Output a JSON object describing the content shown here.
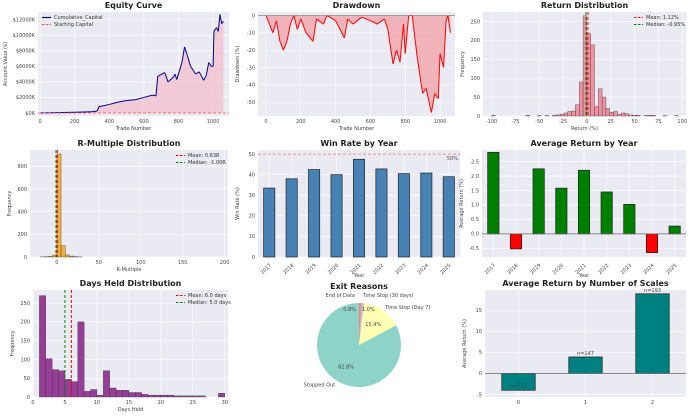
{
  "chart_data": [
    {
      "type": "area",
      "title": "Equity Curve",
      "xlabel": "Trade Number",
      "ylabel": "Account Value ($)",
      "xlim": [
        -12,
        1092
      ],
      "ylim": [
        -390,
        13000
      ],
      "grid": true,
      "xticks": [
        0,
        200,
        400,
        600,
        800,
        1000
      ],
      "xticklabels": [
        "0",
        "200",
        "400",
        "600",
        "800",
        "1000"
      ],
      "yticks": [
        0,
        2000,
        4000,
        6000,
        8000,
        10000,
        12000
      ],
      "yticklabels": [
        "$0K",
        "$2000K",
        "$4000K",
        "$6000K",
        "$8000K",
        "$10000K",
        "$12000K"
      ],
      "legend": {
        "placement": "top-left",
        "entries": [
          "Cumulative_Capital",
          "Starting Capital"
        ]
      },
      "colors": {
        "line": "#00008b",
        "fill": "#f4c2cf",
        "reference": "#ff4444"
      },
      "starting_capital": 0,
      "x": [
        0,
        100,
        200,
        300,
        330,
        340,
        400,
        450,
        500,
        550,
        600,
        650,
        670,
        680,
        720,
        740,
        770,
        780,
        790,
        820,
        835,
        850,
        870,
        900,
        920,
        945,
        960,
        975,
        990,
        1000,
        1005,
        1020,
        1030,
        1040,
        1050,
        1060
      ],
      "y": [
        0,
        50,
        100,
        150,
        250,
        800,
        1100,
        1400,
        1600,
        1700,
        2000,
        2300,
        2200,
        4700,
        5200,
        4000,
        4600,
        5000,
        4300,
        6500,
        8500,
        7500,
        6000,
        5000,
        5300,
        4200,
        4800,
        6500,
        6000,
        6000,
        10500,
        11000,
        10500,
        12700,
        11500,
        11800
      ]
    },
    {
      "type": "area",
      "title": "Drawdown",
      "xlabel": "Trade Number",
      "ylabel": "Drawdown (%)",
      "xlim": [
        -46,
        1086
      ],
      "ylim": [
        -58,
        2
      ],
      "grid": true,
      "xticks": [
        0,
        200,
        400,
        600,
        800,
        1000
      ],
      "xticklabels": [
        "0",
        "200",
        "400",
        "600",
        "800",
        "1000"
      ],
      "yticks": [
        -50,
        -40,
        -30,
        -20,
        -10,
        0
      ],
      "yticklabels": [
        "-50",
        "-40",
        "-30",
        "-20",
        "-10",
        "0"
      ],
      "colors": {
        "line": "#ff0000",
        "fill": "#f2a5ab"
      },
      "x": [
        0,
        20,
        40,
        60,
        80,
        100,
        120,
        140,
        160,
        180,
        200,
        230,
        270,
        290,
        330,
        350,
        400,
        450,
        470,
        500,
        550,
        600,
        640,
        680,
        700,
        730,
        750,
        770,
        790,
        800,
        820,
        840,
        870,
        900,
        920,
        950,
        970,
        990,
        1000,
        1020,
        1035,
        1045,
        1060
      ],
      "y": [
        0,
        -5,
        -10,
        -3,
        -15,
        -20,
        -15,
        -5,
        0,
        -8,
        -2,
        -10,
        -15,
        -2,
        -5,
        0,
        -3,
        -13,
        -2,
        -5,
        -1,
        -3,
        -5,
        -2,
        -8,
        -28,
        -20,
        -27,
        -5,
        -22,
        0,
        0,
        -25,
        -45,
        -42,
        -56,
        -45,
        -48,
        -22,
        -30,
        -3,
        0,
        -10
      ]
    },
    {
      "type": "bar",
      "title": "Return Distribution",
      "xlabel": "Return (%)",
      "ylabel": "Frequency",
      "xlim": [
        -109,
        104
      ],
      "ylim": [
        0,
        275
      ],
      "grid": true,
      "bin_width": 4,
      "xticks": [
        -100,
        -75,
        -50,
        -25,
        0,
        25,
        50,
        75,
        100
      ],
      "xticklabels": [
        "-100",
        "-75",
        "-50",
        "-25",
        "0",
        "25",
        "50",
        "75",
        "100"
      ],
      "yticks": [
        0,
        50,
        100,
        150,
        200,
        250
      ],
      "yticklabels": [
        "0",
        "50",
        "100",
        "150",
        "200",
        "250"
      ],
      "colors": {
        "bar": "#f08a9b",
        "mean": "#ff0000",
        "median": "#008000"
      },
      "legend": {
        "placement": "top-right",
        "entries": [
          "Mean: 1.12%",
          "Median: -0.95%"
        ]
      },
      "mean": 1.12,
      "median": -0.95,
      "bin_starts": [
        -100,
        -64,
        -52,
        -44,
        -36,
        -32,
        -28,
        -24,
        -20,
        -16,
        -12,
        -8,
        -4,
        0,
        4,
        8,
        12,
        16,
        20,
        24,
        28,
        32,
        36,
        40,
        44,
        48,
        52,
        60,
        64,
        68,
        80,
        92
      ],
      "counts": [
        2,
        2,
        1,
        1,
        2,
        3,
        5,
        8,
        12,
        13,
        30,
        90,
        265,
        218,
        188,
        25,
        72,
        50,
        20,
        10,
        12,
        5,
        8,
        6,
        3,
        2,
        2,
        1,
        2,
        2,
        1,
        1
      ]
    },
    {
      "type": "bar",
      "title": "R-Multiple Distribution",
      "xlabel": "R-Multiple",
      "ylabel": "Frequency",
      "xlim": [
        -32,
        204
      ],
      "ylim": [
        0,
        945
      ],
      "grid": true,
      "bin_width": 5,
      "xticks": [
        0,
        50,
        100,
        150,
        200
      ],
      "xticklabels": [
        "0",
        "50",
        "100",
        "150",
        "200"
      ],
      "yticks": [
        0,
        200,
        400,
        600,
        800
      ],
      "yticklabels": [
        "0",
        "200",
        "400",
        "600",
        "800"
      ],
      "colors": {
        "bar": "#f5a623",
        "mean": "#ff0000",
        "median": "#008000"
      },
      "legend": {
        "placement": "top-right",
        "entries": [
          "Mean: 0.63R",
          "Median: -1.00R"
        ]
      },
      "mean": 0.63,
      "median": -1.0,
      "bin_starts": [
        -20,
        -15,
        -10,
        -5,
        0,
        5,
        10,
        15,
        20,
        25
      ],
      "counts": [
        1,
        2,
        5,
        18,
        910,
        100,
        18,
        8,
        3,
        1
      ]
    },
    {
      "type": "bar",
      "title": "Win Rate by Year",
      "xlabel": "Year",
      "ylabel": "Win Rate (%)",
      "ylim": [
        0,
        52
      ],
      "grid": true,
      "categories": [
        "2017",
        "2018",
        "2019",
        "2020",
        "2021",
        "2022",
        "2023",
        "2024",
        "2025"
      ],
      "values": [
        33.5,
        38,
        42.5,
        40,
        47.5,
        42.8,
        40.5,
        40.8,
        39
      ],
      "yticks": [
        0,
        10,
        20,
        30,
        40,
        50
      ],
      "yticklabels": [
        "0",
        "10",
        "20",
        "30",
        "40",
        "50"
      ],
      "reference": {
        "value": 50,
        "label": "50%"
      },
      "colors": {
        "bar": "#4682b4",
        "reference": "#ff6666"
      }
    },
    {
      "type": "bar",
      "title": "Average Return by Year",
      "xlabel": "Year",
      "ylabel": "Average Return (%)",
      "ylim": [
        -0.8,
        2.9
      ],
      "grid": true,
      "categories": [
        "2017",
        "2018",
        "2019",
        "2020",
        "2021",
        "2022",
        "2023",
        "2024",
        "2025"
      ],
      "values": [
        2.82,
        -0.52,
        2.25,
        1.58,
        2.2,
        1.45,
        1.02,
        -0.65,
        0.27
      ],
      "yticks": [
        -0.5,
        0,
        0.5,
        1,
        1.5,
        2,
        2.5
      ],
      "yticklabels": [
        "-0.5",
        "0.0",
        "0.5",
        "1.0",
        "1.5",
        "2.0",
        "2.5"
      ],
      "colors": {
        "positive": "#008000",
        "negative": "#ff0000"
      }
    },
    {
      "type": "bar",
      "title": "Days Held Distribution",
      "xlabel": "Days Held",
      "ylabel": "Frequency",
      "xlim": [
        0,
        30.5
      ],
      "ylim": [
        0,
        285
      ],
      "grid": true,
      "bin_width": 1,
      "xticks": [
        0,
        5,
        10,
        15,
        20,
        25,
        30
      ],
      "xticklabels": [
        "0",
        "5",
        "10",
        "15",
        "20",
        "25",
        "30"
      ],
      "yticks": [
        0,
        50,
        100,
        150,
        200,
        250
      ],
      "yticklabels": [
        "0",
        "50",
        "100",
        "150",
        "200",
        "250"
      ],
      "colors": {
        "bar": "#8e2c8e",
        "mean": "#ff0000",
        "median": "#008000"
      },
      "legend": {
        "placement": "top-right",
        "entries": [
          "Mean: 6.0 days",
          "Median: 5.0 days"
        ]
      },
      "mean": 6.0,
      "median": 5.0,
      "bin_starts": [
        1,
        2,
        3,
        4,
        5,
        6,
        7,
        8,
        9,
        10,
        11,
        12,
        13,
        14,
        15,
        16,
        17,
        18,
        19,
        20,
        21,
        22,
        23,
        24,
        25,
        26,
        29
      ],
      "counts": [
        270,
        102,
        73,
        70,
        47,
        41,
        200,
        15,
        20,
        5,
        70,
        24,
        18,
        18,
        12,
        12,
        7,
        5,
        5,
        5,
        5,
        3,
        3,
        3,
        3,
        3,
        10
      ]
    },
    {
      "type": "pie",
      "title": "Exit Reasons",
      "labels": [
        "Stopped Out",
        "Time Stop (Day 7)",
        "Time Stop (30 days)",
        "End of Data"
      ],
      "values": [
        82.8,
        15.4,
        1.0,
        0.8
      ],
      "pct_labels": [
        "82.8%",
        "15.4%",
        "1.0%",
        "0.8%"
      ],
      "colors": [
        "#8dd3c7",
        "#ffffb3",
        "#bebada",
        "#fb8072"
      ]
    },
    {
      "type": "bar",
      "title": "Average Return by Number of Scales",
      "xlabel": "Number of Scales",
      "ylabel": "Average Return (%)",
      "ylim": [
        -5.6,
        19.8
      ],
      "grid": true,
      "categories": [
        "0",
        "1",
        "2"
      ],
      "values": [
        -4.0,
        3.9,
        18.9
      ],
      "bar_labels": [
        "n=721",
        "n=147",
        "n=193"
      ],
      "yticks": [
        -5,
        0,
        5,
        10,
        15
      ],
      "yticklabels": [
        "-5",
        "0",
        "5",
        "10",
        "15"
      ],
      "colors": {
        "bar": "#008080"
      }
    }
  ]
}
